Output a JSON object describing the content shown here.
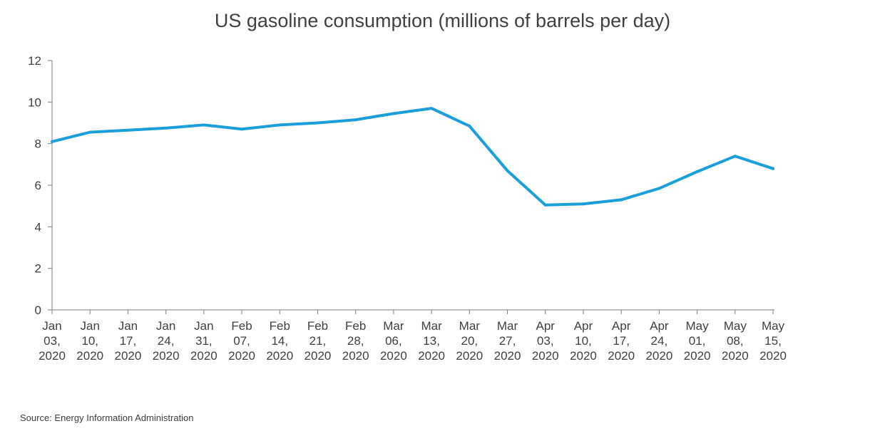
{
  "chart_data": {
    "type": "line",
    "title": "US gasoline consumption (millions of barrels per day)",
    "xlabel": "",
    "ylabel": "",
    "ylim": [
      0,
      12
    ],
    "yticks": [
      0,
      2,
      4,
      6,
      8,
      10,
      12
    ],
    "grid": false,
    "legend": "none",
    "categories": [
      [
        "Jan",
        "03,",
        "2020"
      ],
      [
        "Jan",
        "10,",
        "2020"
      ],
      [
        "Jan",
        "17,",
        "2020"
      ],
      [
        "Jan",
        "24,",
        "2020"
      ],
      [
        "Jan",
        "31,",
        "2020"
      ],
      [
        "Feb",
        "07,",
        "2020"
      ],
      [
        "Feb",
        "14,",
        "2020"
      ],
      [
        "Feb",
        "21,",
        "2020"
      ],
      [
        "Feb",
        "28,",
        "2020"
      ],
      [
        "Mar",
        "06,",
        "2020"
      ],
      [
        "Mar",
        "13,",
        "2020"
      ],
      [
        "Mar",
        "20,",
        "2020"
      ],
      [
        "Mar",
        "27,",
        "2020"
      ],
      [
        "Apr",
        "03,",
        "2020"
      ],
      [
        "Apr",
        "10,",
        "2020"
      ],
      [
        "Apr",
        "17,",
        "2020"
      ],
      [
        "Apr",
        "24,",
        "2020"
      ],
      [
        "May",
        "01,",
        "2020"
      ],
      [
        "May",
        "08,",
        "2020"
      ],
      [
        "May",
        "15,",
        "2020"
      ]
    ],
    "series": [
      {
        "values": [
          8.1,
          8.55,
          8.65,
          8.75,
          8.9,
          8.7,
          8.9,
          9.0,
          9.15,
          9.45,
          9.7,
          8.85,
          6.7,
          5.05,
          5.1,
          5.3,
          5.85,
          6.65,
          7.4,
          6.8
        ],
        "color": "#1a9fdb"
      }
    ]
  },
  "source": "Source: Energy Information Administration"
}
